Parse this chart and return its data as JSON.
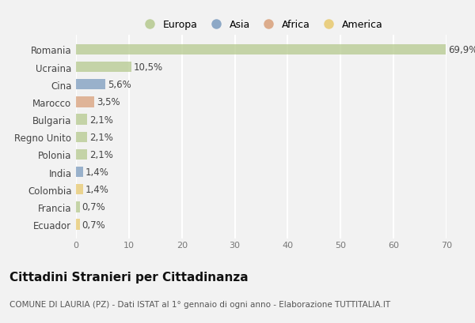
{
  "countries": [
    "Romania",
    "Ucraina",
    "Cina",
    "Marocco",
    "Bulgaria",
    "Regno Unito",
    "Polonia",
    "India",
    "Colombia",
    "Francia",
    "Ecuador"
  ],
  "values": [
    69.9,
    10.5,
    5.6,
    3.5,
    2.1,
    2.1,
    2.1,
    1.4,
    1.4,
    0.7,
    0.7
  ],
  "labels": [
    "69,9%",
    "10,5%",
    "5,6%",
    "3,5%",
    "2,1%",
    "2,1%",
    "2,1%",
    "1,4%",
    "1,4%",
    "0,7%",
    "0,7%"
  ],
  "colors": [
    "#b5c98e",
    "#b5c98e",
    "#7b9bbf",
    "#d9a07a",
    "#b5c98e",
    "#b5c98e",
    "#b5c98e",
    "#7b9bbf",
    "#e8c96e",
    "#b5c98e",
    "#e8c96e"
  ],
  "legend_labels": [
    "Europa",
    "Asia",
    "Africa",
    "America"
  ],
  "legend_colors": [
    "#b5c98e",
    "#7b9bbf",
    "#d9a07a",
    "#e8c96e"
  ],
  "title": "Cittadini Stranieri per Cittadinanza",
  "subtitle": "COMUNE DI LAURIA (PZ) - Dati ISTAT al 1° gennaio di ogni anno - Elaborazione TUTTITALIA.IT",
  "xlim": [
    0,
    70
  ],
  "xticks": [
    0,
    10,
    20,
    30,
    40,
    50,
    60,
    70
  ],
  "bg_color": "#f2f2f2",
  "grid_color": "#ffffff",
  "bar_height": 0.6,
  "label_fontsize": 8.5,
  "title_fontsize": 11,
  "subtitle_fontsize": 7.5,
  "ytick_fontsize": 8.5,
  "xtick_fontsize": 8
}
